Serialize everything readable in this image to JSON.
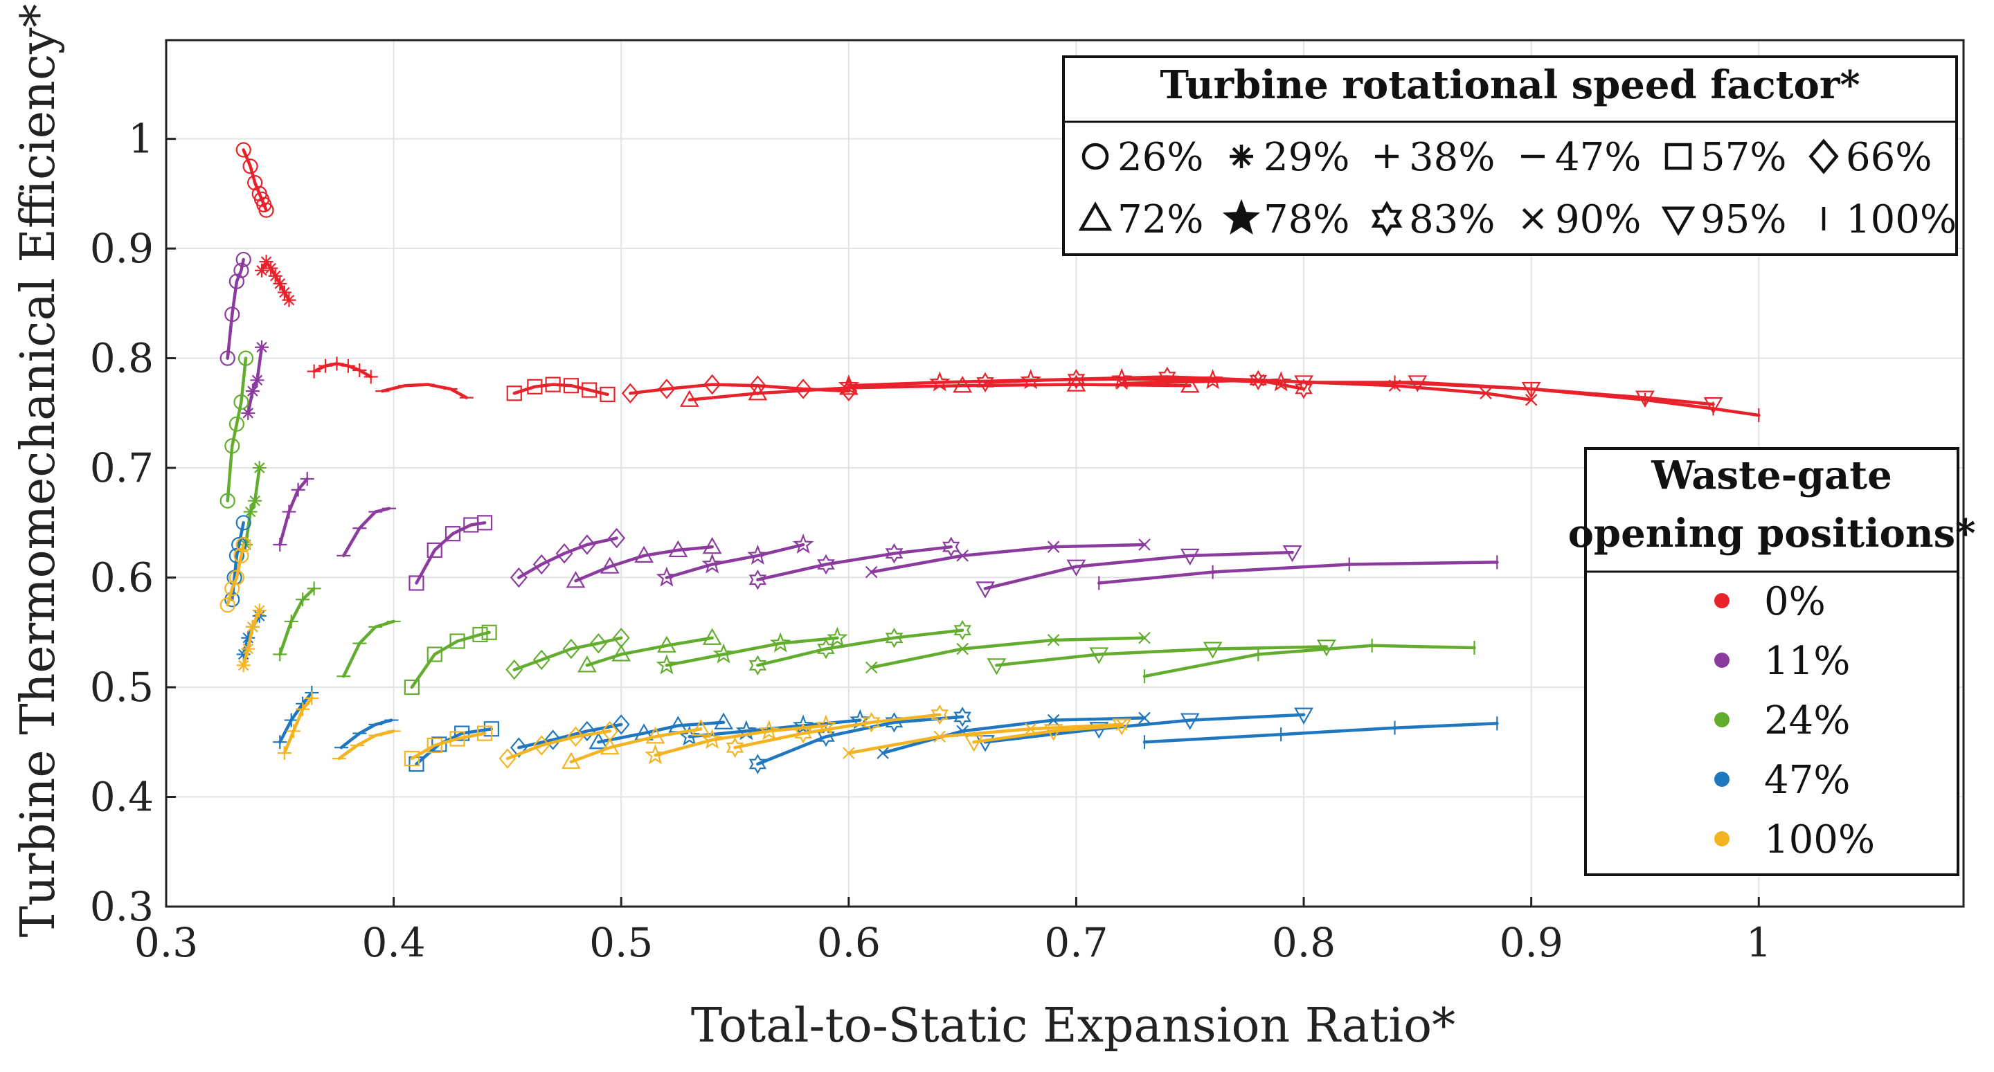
{
  "chart_data": {
    "type": "scatter",
    "xlabel": "Total-to-Static Expansion Ratio*",
    "ylabel": "Turbine Thermomechanical Efficiency*",
    "xlim": [
      0.3,
      1.09
    ],
    "ylim": [
      0.3,
      1.09
    ],
    "xticks": [
      "0.3",
      "0.4",
      "0.5",
      "0.6",
      "0.7",
      "0.8",
      "0.9",
      "1"
    ],
    "yticks": [
      "0.3",
      "0.4",
      "0.5",
      "0.6",
      "0.7",
      "0.8",
      "0.9",
      "1"
    ],
    "grid": true,
    "speed_legend": {
      "title": "Turbine rotational speed factor*",
      "position": "top-right",
      "entries": [
        {
          "marker": "circle",
          "label": "26%"
        },
        {
          "marker": "asterisk",
          "label": "29%"
        },
        {
          "marker": "plus",
          "label": "38%"
        },
        {
          "marker": "dash",
          "label": "47%"
        },
        {
          "marker": "square",
          "label": "57%"
        },
        {
          "marker": "diamond",
          "label": "66%"
        },
        {
          "marker": "triangle-up",
          "label": "72%"
        },
        {
          "marker": "star",
          "label": "78%"
        },
        {
          "marker": "hexagram",
          "label": "83%"
        },
        {
          "marker": "x",
          "label": "90%"
        },
        {
          "marker": "triangle-down",
          "label": "95%"
        },
        {
          "marker": "vline",
          "label": "100%"
        }
      ]
    },
    "wastegate_legend": {
      "title_line1": "Waste-gate",
      "title_line2": "opening positions*",
      "position": "right",
      "entries": [
        {
          "label": "0%",
          "color": "#e8212a"
        },
        {
          "label": "11%",
          "color": "#8b3a9e"
        },
        {
          "label": "24%",
          "color": "#63ad2e"
        },
        {
          "label": "47%",
          "color": "#1f77c0"
        },
        {
          "label": "100%",
          "color": "#f4b320"
        }
      ]
    },
    "series": [
      {
        "wastegate": "0%",
        "speed": "26%",
        "marker": "circle",
        "x": [
          0.334,
          0.337,
          0.339,
          0.341,
          0.342,
          0.343,
          0.344
        ],
        "y": [
          0.99,
          0.975,
          0.96,
          0.95,
          0.945,
          0.94,
          0.935
        ]
      },
      {
        "wastegate": "0%",
        "speed": "29%",
        "marker": "asterisk",
        "x": [
          0.342,
          0.344,
          0.346,
          0.348,
          0.35,
          0.352,
          0.354
        ],
        "y": [
          0.88,
          0.888,
          0.882,
          0.875,
          0.868,
          0.86,
          0.853
        ]
      },
      {
        "wastegate": "0%",
        "speed": "38%",
        "marker": "plus",
        "x": [
          0.365,
          0.37,
          0.375,
          0.38,
          0.385,
          0.39
        ],
        "y": [
          0.788,
          0.793,
          0.795,
          0.793,
          0.789,
          0.783
        ]
      },
      {
        "wastegate": "0%",
        "speed": "47%",
        "marker": "dash",
        "x": [
          0.395,
          0.405,
          0.415,
          0.425,
          0.432
        ],
        "y": [
          0.77,
          0.775,
          0.776,
          0.772,
          0.764
        ]
      },
      {
        "wastegate": "0%",
        "speed": "57%",
        "marker": "square",
        "x": [
          0.453,
          0.462,
          0.47,
          0.478,
          0.486,
          0.494
        ],
        "y": [
          0.768,
          0.774,
          0.776,
          0.775,
          0.771,
          0.767
        ]
      },
      {
        "wastegate": "0%",
        "speed": "66%",
        "marker": "diamond",
        "x": [
          0.504,
          0.52,
          0.54,
          0.56,
          0.58,
          0.6
        ],
        "y": [
          0.768,
          0.772,
          0.776,
          0.775,
          0.772,
          0.77
        ]
      },
      {
        "wastegate": "0%",
        "speed": "72%",
        "marker": "triangle-up",
        "x": [
          0.53,
          0.56,
          0.6,
          0.65,
          0.7,
          0.75
        ],
        "y": [
          0.762,
          0.768,
          0.773,
          0.775,
          0.776,
          0.775
        ]
      },
      {
        "wastegate": "0%",
        "speed": "78%",
        "marker": "star",
        "x": [
          0.6,
          0.64,
          0.68,
          0.72,
          0.76,
          0.79
        ],
        "y": [
          0.775,
          0.778,
          0.78,
          0.781,
          0.78,
          0.778
        ]
      },
      {
        "wastegate": "0%",
        "speed": "83%",
        "marker": "hexagram",
        "x": [
          0.66,
          0.7,
          0.74,
          0.78,
          0.8
        ],
        "y": [
          0.778,
          0.781,
          0.783,
          0.78,
          0.772
        ]
      },
      {
        "wastegate": "0%",
        "speed": "90%",
        "marker": "x",
        "x": [
          0.72,
          0.78,
          0.84,
          0.88,
          0.9
        ],
        "y": [
          0.777,
          0.78,
          0.775,
          0.768,
          0.762
        ]
      },
      {
        "wastegate": "0%",
        "speed": "95%",
        "marker": "triangle-down",
        "x": [
          0.8,
          0.85,
          0.9,
          0.95,
          0.98
        ],
        "y": [
          0.778,
          0.778,
          0.772,
          0.764,
          0.758
        ]
      },
      {
        "wastegate": "0%",
        "speed": "100%",
        "marker": "vline",
        "x": [
          0.84,
          0.9,
          0.95,
          0.98,
          1.0
        ],
        "y": [
          0.778,
          0.772,
          0.762,
          0.754,
          0.748
        ]
      },
      {
        "wastegate": "11%",
        "speed": "26%",
        "marker": "circle",
        "x": [
          0.327,
          0.329,
          0.331,
          0.333,
          0.334
        ],
        "y": [
          0.8,
          0.84,
          0.87,
          0.88,
          0.89
        ]
      },
      {
        "wastegate": "11%",
        "speed": "29%",
        "marker": "asterisk",
        "x": [
          0.336,
          0.338,
          0.34,
          0.342
        ],
        "y": [
          0.75,
          0.77,
          0.78,
          0.81
        ]
      },
      {
        "wastegate": "11%",
        "speed": "38%",
        "marker": "plus",
        "x": [
          0.35,
          0.354,
          0.358,
          0.362
        ],
        "y": [
          0.63,
          0.66,
          0.68,
          0.69
        ]
      },
      {
        "wastegate": "11%",
        "speed": "47%",
        "marker": "dash",
        "x": [
          0.378,
          0.385,
          0.392,
          0.398
        ],
        "y": [
          0.62,
          0.645,
          0.66,
          0.663
        ]
      },
      {
        "wastegate": "11%",
        "speed": "57%",
        "marker": "square",
        "x": [
          0.41,
          0.418,
          0.426,
          0.434,
          0.44
        ],
        "y": [
          0.595,
          0.625,
          0.64,
          0.648,
          0.65
        ]
      },
      {
        "wastegate": "11%",
        "speed": "66%",
        "marker": "diamond",
        "x": [
          0.455,
          0.465,
          0.475,
          0.485,
          0.498
        ],
        "y": [
          0.6,
          0.612,
          0.622,
          0.63,
          0.636
        ]
      },
      {
        "wastegate": "11%",
        "speed": "72%",
        "marker": "triangle-up",
        "x": [
          0.48,
          0.495,
          0.51,
          0.525,
          0.54
        ],
        "y": [
          0.597,
          0.61,
          0.62,
          0.625,
          0.628
        ]
      },
      {
        "wastegate": "11%",
        "speed": "78%",
        "marker": "star",
        "x": [
          0.52,
          0.54,
          0.56,
          0.58
        ],
        "y": [
          0.6,
          0.612,
          0.62,
          0.63
        ]
      },
      {
        "wastegate": "11%",
        "speed": "83%",
        "marker": "hexagram",
        "x": [
          0.56,
          0.59,
          0.62,
          0.645
        ],
        "y": [
          0.598,
          0.612,
          0.622,
          0.628
        ]
      },
      {
        "wastegate": "11%",
        "speed": "90%",
        "marker": "x",
        "x": [
          0.61,
          0.65,
          0.69,
          0.73
        ],
        "y": [
          0.605,
          0.62,
          0.628,
          0.63
        ]
      },
      {
        "wastegate": "11%",
        "speed": "95%",
        "marker": "triangle-down",
        "x": [
          0.66,
          0.7,
          0.75,
          0.795
        ],
        "y": [
          0.59,
          0.61,
          0.62,
          0.623
        ]
      },
      {
        "wastegate": "11%",
        "speed": "100%",
        "marker": "vline",
        "x": [
          0.71,
          0.76,
          0.82,
          0.885
        ],
        "y": [
          0.595,
          0.605,
          0.612,
          0.614
        ]
      },
      {
        "wastegate": "24%",
        "speed": "26%",
        "marker": "circle",
        "x": [
          0.327,
          0.329,
          0.331,
          0.333,
          0.335
        ],
        "y": [
          0.67,
          0.72,
          0.74,
          0.76,
          0.8
        ]
      },
      {
        "wastegate": "24%",
        "speed": "29%",
        "marker": "asterisk",
        "x": [
          0.335,
          0.337,
          0.339,
          0.341
        ],
        "y": [
          0.63,
          0.66,
          0.67,
          0.7
        ]
      },
      {
        "wastegate": "24%",
        "speed": "38%",
        "marker": "plus",
        "x": [
          0.35,
          0.355,
          0.36,
          0.365
        ],
        "y": [
          0.53,
          0.56,
          0.58,
          0.59
        ]
      },
      {
        "wastegate": "24%",
        "speed": "47%",
        "marker": "dash",
        "x": [
          0.378,
          0.385,
          0.392,
          0.4
        ],
        "y": [
          0.51,
          0.54,
          0.555,
          0.56
        ]
      },
      {
        "wastegate": "24%",
        "speed": "57%",
        "marker": "square",
        "x": [
          0.408,
          0.418,
          0.428,
          0.438,
          0.442
        ],
        "y": [
          0.5,
          0.53,
          0.542,
          0.548,
          0.55
        ]
      },
      {
        "wastegate": "24%",
        "speed": "66%",
        "marker": "diamond",
        "x": [
          0.453,
          0.465,
          0.478,
          0.49,
          0.5
        ],
        "y": [
          0.516,
          0.525,
          0.535,
          0.54,
          0.545
        ]
      },
      {
        "wastegate": "24%",
        "speed": "72%",
        "marker": "triangle-up",
        "x": [
          0.485,
          0.5,
          0.52,
          0.54
        ],
        "y": [
          0.52,
          0.53,
          0.538,
          0.545
        ]
      },
      {
        "wastegate": "24%",
        "speed": "78%",
        "marker": "star",
        "x": [
          0.52,
          0.545,
          0.57,
          0.595
        ],
        "y": [
          0.52,
          0.53,
          0.54,
          0.545
        ]
      },
      {
        "wastegate": "24%",
        "speed": "83%",
        "marker": "hexagram",
        "x": [
          0.56,
          0.59,
          0.62,
          0.65
        ],
        "y": [
          0.52,
          0.535,
          0.545,
          0.552
        ]
      },
      {
        "wastegate": "24%",
        "speed": "90%",
        "marker": "x",
        "x": [
          0.61,
          0.65,
          0.69,
          0.73
        ],
        "y": [
          0.518,
          0.535,
          0.543,
          0.545
        ]
      },
      {
        "wastegate": "24%",
        "speed": "95%",
        "marker": "triangle-down",
        "x": [
          0.665,
          0.71,
          0.76,
          0.81
        ],
        "y": [
          0.52,
          0.53,
          0.535,
          0.537
        ]
      },
      {
        "wastegate": "24%",
        "speed": "100%",
        "marker": "vline",
        "x": [
          0.73,
          0.78,
          0.83,
          0.875
        ],
        "y": [
          0.51,
          0.53,
          0.538,
          0.536
        ]
      },
      {
        "wastegate": "47%",
        "speed": "26%",
        "marker": "circle",
        "x": [
          0.329,
          0.33,
          0.331,
          0.332,
          0.334
        ],
        "y": [
          0.58,
          0.6,
          0.62,
          0.63,
          0.65
        ]
      },
      {
        "wastegate": "47%",
        "speed": "29%",
        "marker": "asterisk",
        "x": [
          0.334,
          0.336,
          0.338,
          0.341
        ],
        "y": [
          0.53,
          0.545,
          0.555,
          0.565
        ]
      },
      {
        "wastegate": "47%",
        "speed": "38%",
        "marker": "plus",
        "x": [
          0.35,
          0.355,
          0.36,
          0.364
        ],
        "y": [
          0.45,
          0.47,
          0.485,
          0.495
        ]
      },
      {
        "wastegate": "47%",
        "speed": "47%",
        "marker": "dash",
        "x": [
          0.377,
          0.385,
          0.392,
          0.399
        ],
        "y": [
          0.445,
          0.458,
          0.466,
          0.47
        ]
      },
      {
        "wastegate": "47%",
        "speed": "57%",
        "marker": "square",
        "x": [
          0.41,
          0.42,
          0.43,
          0.443
        ],
        "y": [
          0.43,
          0.448,
          0.458,
          0.462
        ]
      },
      {
        "wastegate": "47%",
        "speed": "66%",
        "marker": "diamond",
        "x": [
          0.455,
          0.47,
          0.485,
          0.5
        ],
        "y": [
          0.445,
          0.452,
          0.46,
          0.466
        ]
      },
      {
        "wastegate": "47%",
        "speed": "72%",
        "marker": "triangle-up",
        "x": [
          0.49,
          0.51,
          0.525,
          0.545
        ],
        "y": [
          0.45,
          0.458,
          0.465,
          0.468
        ]
      },
      {
        "wastegate": "47%",
        "speed": "78%",
        "marker": "star",
        "x": [
          0.53,
          0.555,
          0.58,
          0.605
        ],
        "y": [
          0.455,
          0.46,
          0.465,
          0.47
        ]
      },
      {
        "wastegate": "47%",
        "speed": "83%",
        "marker": "hexagram",
        "x": [
          0.56,
          0.59,
          0.62,
          0.65
        ],
        "y": [
          0.43,
          0.455,
          0.468,
          0.473
        ]
      },
      {
        "wastegate": "47%",
        "speed": "90%",
        "marker": "x",
        "x": [
          0.615,
          0.65,
          0.69,
          0.73
        ],
        "y": [
          0.44,
          0.46,
          0.47,
          0.472
        ]
      },
      {
        "wastegate": "47%",
        "speed": "95%",
        "marker": "triangle-down",
        "x": [
          0.66,
          0.71,
          0.75,
          0.8
        ],
        "y": [
          0.45,
          0.462,
          0.47,
          0.475
        ]
      },
      {
        "wastegate": "47%",
        "speed": "100%",
        "marker": "vline",
        "x": [
          0.73,
          0.79,
          0.84,
          0.885
        ],
        "y": [
          0.45,
          0.457,
          0.463,
          0.467
        ]
      },
      {
        "wastegate": "100%",
        "speed": "26%",
        "marker": "circle",
        "x": [
          0.327,
          0.329,
          0.331,
          0.333,
          0.334
        ],
        "y": [
          0.575,
          0.59,
          0.6,
          0.62,
          0.63
        ]
      },
      {
        "wastegate": "100%",
        "speed": "29%",
        "marker": "asterisk",
        "x": [
          0.334,
          0.336,
          0.338,
          0.341
        ],
        "y": [
          0.52,
          0.535,
          0.555,
          0.57
        ]
      },
      {
        "wastegate": "100%",
        "speed": "38%",
        "marker": "plus",
        "x": [
          0.352,
          0.356,
          0.36,
          0.364
        ],
        "y": [
          0.44,
          0.46,
          0.48,
          0.49
        ]
      },
      {
        "wastegate": "100%",
        "speed": "47%",
        "marker": "dash",
        "x": [
          0.376,
          0.384,
          0.392,
          0.4
        ],
        "y": [
          0.435,
          0.447,
          0.456,
          0.46
        ]
      },
      {
        "wastegate": "100%",
        "speed": "57%",
        "marker": "square",
        "x": [
          0.408,
          0.418,
          0.428,
          0.44
        ],
        "y": [
          0.435,
          0.447,
          0.453,
          0.458
        ]
      },
      {
        "wastegate": "100%",
        "speed": "66%",
        "marker": "diamond",
        "x": [
          0.45,
          0.465,
          0.48,
          0.495
        ],
        "y": [
          0.435,
          0.447,
          0.455,
          0.46
        ]
      },
      {
        "wastegate": "100%",
        "speed": "72%",
        "marker": "triangle-up",
        "x": [
          0.478,
          0.495,
          0.515,
          0.535
        ],
        "y": [
          0.432,
          0.445,
          0.455,
          0.462
        ]
      },
      {
        "wastegate": "100%",
        "speed": "78%",
        "marker": "star",
        "x": [
          0.515,
          0.54,
          0.565,
          0.59
        ],
        "y": [
          0.438,
          0.452,
          0.46,
          0.465
        ]
      },
      {
        "wastegate": "100%",
        "speed": "83%",
        "marker": "hexagram",
        "x": [
          0.55,
          0.58,
          0.61,
          0.64
        ],
        "y": [
          0.445,
          0.458,
          0.468,
          0.475
        ]
      },
      {
        "wastegate": "100%",
        "speed": "90%",
        "marker": "x",
        "x": [
          0.6,
          0.64,
          0.68,
          0.72
        ],
        "y": [
          0.44,
          0.455,
          0.462,
          0.466
        ]
      },
      {
        "wastegate": "100%",
        "speed": "95%",
        "marker": "triangle-down",
        "x": [
          0.655,
          0.69,
          0.72
        ],
        "y": [
          0.45,
          0.46,
          0.465
        ]
      }
    ]
  }
}
